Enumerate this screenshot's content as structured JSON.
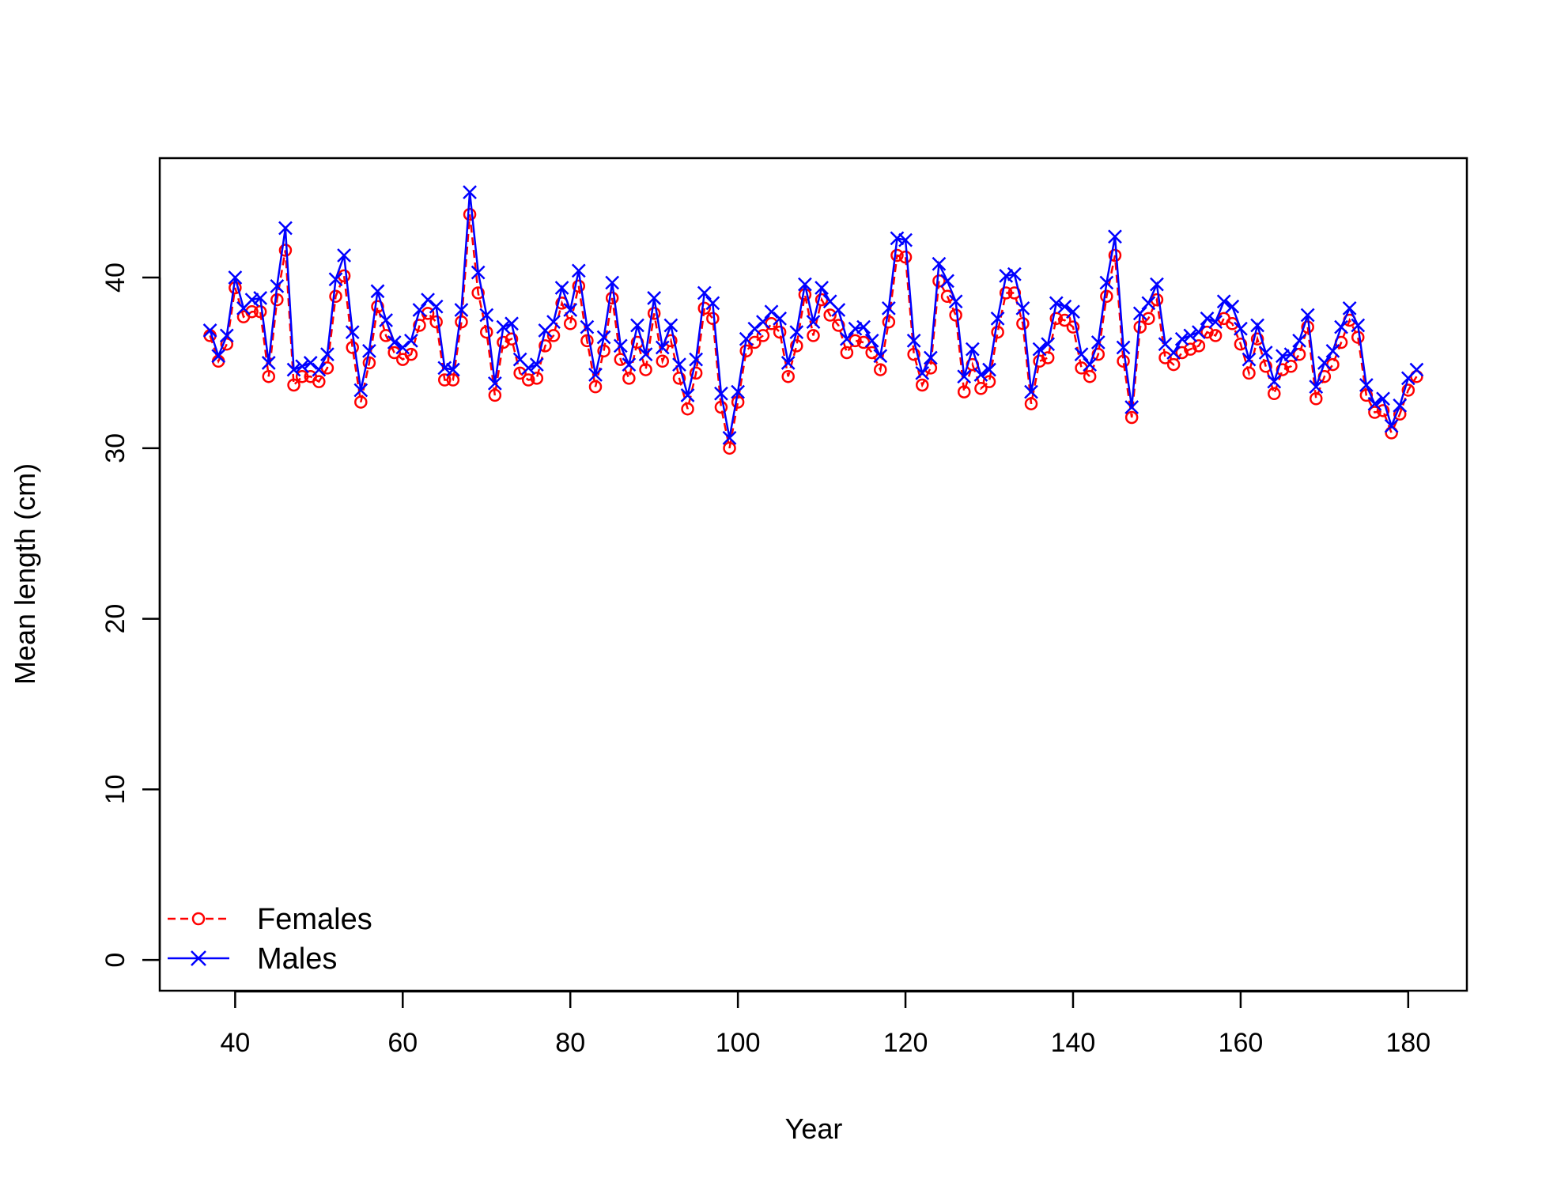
{
  "chart_data": {
    "type": "line",
    "xlabel": "Year",
    "ylabel": "Mean length (cm)",
    "xlim": [
      31,
      187
    ],
    "ylim": [
      -1.8,
      47
    ],
    "x_ticks": [
      40,
      60,
      80,
      100,
      120,
      140,
      160,
      180
    ],
    "y_ticks": [
      0,
      10,
      20,
      30,
      40
    ],
    "grid": false,
    "legend_position": "bottom-left",
    "x": [
      37,
      38,
      39,
      40,
      41,
      42,
      43,
      44,
      45,
      46,
      47,
      48,
      49,
      50,
      51,
      52,
      53,
      54,
      55,
      56,
      57,
      58,
      59,
      60,
      61,
      62,
      63,
      64,
      65,
      66,
      67,
      68,
      69,
      70,
      71,
      72,
      73,
      74,
      75,
      76,
      77,
      78,
      79,
      80,
      81,
      82,
      83,
      84,
      85,
      86,
      87,
      88,
      89,
      90,
      91,
      92,
      93,
      94,
      95,
      96,
      97,
      98,
      99,
      100,
      101,
      102,
      103,
      104,
      105,
      106,
      107,
      108,
      109,
      110,
      111,
      112,
      113,
      114,
      115,
      116,
      117,
      118,
      119,
      120,
      121,
      122,
      123,
      124,
      125,
      126,
      127,
      128,
      129,
      130,
      131,
      132,
      133,
      134,
      135,
      136,
      137,
      138,
      139,
      140,
      141,
      142,
      143,
      144,
      145,
      146,
      147,
      148,
      149,
      150,
      151,
      152,
      153,
      154,
      155,
      156,
      157,
      158,
      159,
      160,
      161,
      162,
      163,
      164,
      165,
      166,
      167,
      168,
      169,
      170,
      171,
      172,
      173,
      174,
      175,
      176,
      177,
      178,
      179,
      180,
      181
    ],
    "series": [
      {
        "name": "Females",
        "color": "#ff0000",
        "line": "dashed",
        "marker": "circle",
        "values": [
          36.6,
          35.1,
          36.1,
          39.4,
          37.7,
          38.0,
          38.0,
          34.2,
          38.7,
          41.6,
          33.7,
          34.2,
          34.2,
          33.9,
          34.7,
          38.9,
          40.1,
          35.9,
          32.7,
          35.0,
          38.3,
          36.6,
          35.6,
          35.2,
          35.5,
          37.2,
          37.9,
          37.4,
          34.0,
          34.0,
          37.4,
          43.7,
          39.1,
          36.8,
          33.1,
          36.2,
          36.4,
          34.4,
          34.0,
          34.1,
          36.0,
          36.6,
          38.5,
          37.3,
          39.5,
          36.3,
          33.6,
          35.7,
          38.8,
          35.2,
          34.1,
          36.2,
          34.6,
          37.9,
          35.1,
          36.3,
          34.1,
          32.3,
          34.4,
          38.2,
          37.6,
          32.4,
          30.0,
          32.7,
          35.7,
          36.2,
          36.6,
          37.3,
          36.8,
          34.2,
          36.0,
          39.0,
          36.6,
          38.7,
          37.8,
          37.2,
          35.6,
          36.3,
          36.2,
          35.6,
          34.6,
          37.4,
          41.3,
          41.2,
          35.5,
          33.7,
          34.7,
          39.8,
          38.9,
          37.8,
          33.3,
          34.9,
          33.5,
          33.9,
          36.8,
          39.1,
          39.1,
          37.3,
          32.6,
          35.1,
          35.3,
          37.6,
          37.5,
          37.1,
          34.7,
          34.2,
          35.5,
          38.9,
          41.3,
          35.1,
          31.8,
          37.1,
          37.6,
          38.7,
          35.3,
          34.9,
          35.6,
          35.8,
          36.0,
          36.8,
          36.6,
          37.6,
          37.3,
          36.1,
          34.4,
          36.4,
          34.8,
          33.2,
          34.6,
          34.8,
          35.5,
          37.1,
          32.9,
          34.2,
          34.9,
          36.2,
          37.5,
          36.5,
          33.1,
          32.1,
          32.2,
          30.9,
          32.0,
          33.4,
          34.2
        ]
      },
      {
        "name": "Males",
        "color": "#0000ff",
        "line": "solid",
        "marker": "x",
        "values": [
          36.9,
          35.4,
          36.6,
          40.0,
          38.2,
          38.7,
          38.8,
          35.0,
          39.5,
          42.9,
          34.6,
          34.8,
          35.0,
          34.6,
          35.5,
          39.9,
          41.3,
          36.8,
          33.4,
          35.7,
          39.2,
          37.5,
          36.2,
          35.9,
          36.3,
          38.1,
          38.7,
          38.3,
          34.7,
          34.6,
          38.1,
          45.0,
          40.3,
          37.8,
          33.8,
          37.1,
          37.3,
          35.2,
          34.7,
          34.9,
          36.9,
          37.4,
          39.4,
          38.1,
          40.4,
          37.1,
          34.3,
          36.5,
          39.7,
          36.0,
          34.9,
          37.2,
          35.5,
          38.8,
          35.9,
          37.2,
          34.9,
          33.1,
          35.2,
          39.1,
          38.5,
          33.2,
          30.6,
          33.3,
          36.4,
          37.0,
          37.4,
          38.0,
          37.6,
          35.0,
          36.8,
          39.6,
          37.4,
          39.4,
          38.6,
          38.1,
          36.4,
          37.0,
          37.1,
          36.3,
          35.4,
          38.2,
          42.3,
          42.2,
          36.3,
          34.4,
          35.3,
          40.8,
          39.8,
          38.6,
          34.2,
          35.8,
          34.3,
          34.6,
          37.6,
          40.1,
          40.2,
          38.2,
          33.3,
          35.8,
          36.1,
          38.5,
          38.3,
          38.0,
          35.5,
          34.9,
          36.2,
          39.7,
          42.4,
          35.9,
          32.4,
          37.9,
          38.5,
          39.6,
          36.1,
          35.6,
          36.4,
          36.6,
          36.8,
          37.6,
          37.4,
          38.6,
          38.3,
          37.0,
          35.2,
          37.2,
          35.6,
          33.9,
          35.4,
          35.5,
          36.3,
          37.8,
          33.6,
          35.0,
          35.7,
          37.1,
          38.2,
          37.2,
          33.7,
          32.6,
          32.9,
          31.3,
          32.5,
          34.1,
          34.6
        ]
      }
    ]
  }
}
